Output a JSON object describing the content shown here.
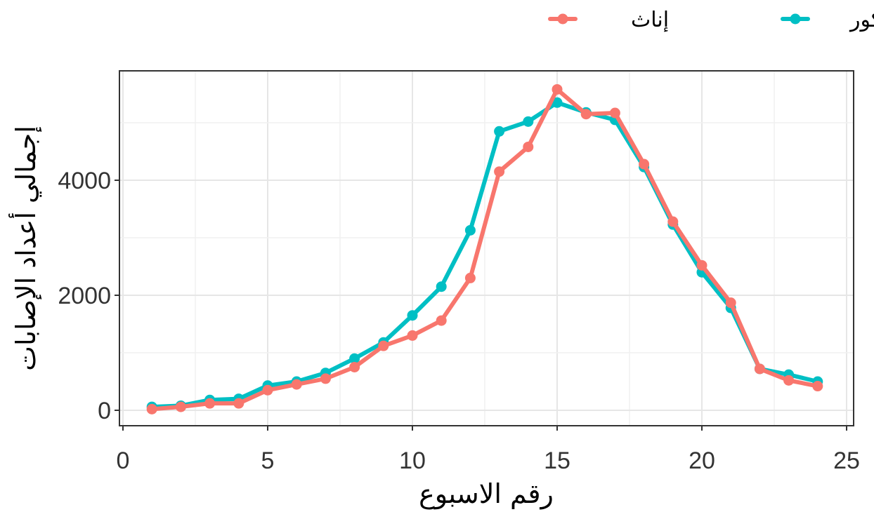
{
  "chart_data": {
    "type": "line",
    "xlabel": "رقم الاسبوع",
    "ylabel": "إجمالي أعداد الإصابات",
    "xlim": [
      0,
      25
    ],
    "ylim": [
      0,
      5800
    ],
    "x_ticks": [
      0,
      5,
      10,
      15,
      20,
      25
    ],
    "x_tick_labels": [
      "0",
      "5",
      "10",
      "15",
      "20",
      "25"
    ],
    "y_ticks": [
      0,
      2000,
      4000
    ],
    "y_tick_labels": [
      "0",
      "2000",
      "4000"
    ],
    "grid": true,
    "legend_position": "top",
    "x": [
      1,
      2,
      3,
      4,
      5,
      6,
      7,
      8,
      9,
      10,
      11,
      12,
      13,
      14,
      15,
      16,
      17,
      18,
      19,
      20,
      21,
      22,
      23,
      24
    ],
    "series": [
      {
        "name": "ذكور",
        "color": "#00BFC4",
        "values": [
          60,
          80,
          180,
          200,
          430,
          500,
          650,
          900,
          1180,
          1650,
          2150,
          3130,
          4850,
          5020,
          5350,
          5180,
          5050,
          4230,
          3230,
          2400,
          1780,
          720,
          620,
          500
        ]
      },
      {
        "name": "إناث",
        "color": "#F8766D",
        "values": [
          20,
          60,
          120,
          120,
          350,
          450,
          550,
          750,
          1120,
          1300,
          1560,
          2300,
          4150,
          4580,
          5580,
          5150,
          5170,
          4280,
          3280,
          2520,
          1870,
          720,
          520,
          420
        ]
      }
    ]
  }
}
